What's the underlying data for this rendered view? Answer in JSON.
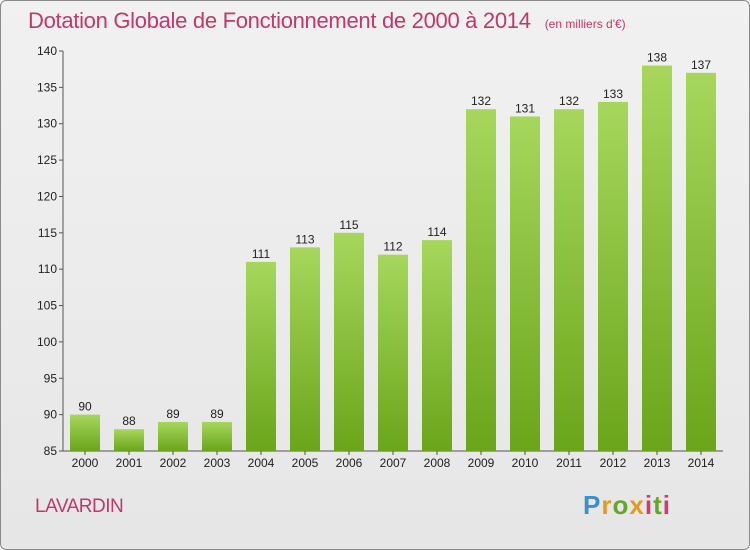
{
  "header": {
    "title": "Dotation Globale de Fonctionnement de 2000 à 2014",
    "subtitle": "(en milliers d'€)"
  },
  "footer": {
    "commune": "LAVARDIN",
    "logo_text": "Proxiti"
  },
  "colors": {
    "bar_top": "#a6d75c",
    "bar_bottom": "#6aa51b",
    "title": "#c0396b",
    "axis": "#555555"
  },
  "chart_data": {
    "type": "bar",
    "title": "Dotation Globale de Fonctionnement de 2000 à 2014",
    "subtitle": "(en milliers d'€)",
    "xlabel": "",
    "ylabel": "",
    "categories": [
      "2000",
      "2001",
      "2002",
      "2003",
      "2004",
      "2005",
      "2006",
      "2007",
      "2008",
      "2009",
      "2010",
      "2011",
      "2012",
      "2013",
      "2014"
    ],
    "values": [
      90,
      88,
      89,
      89,
      111,
      113,
      115,
      112,
      114,
      132,
      131,
      132,
      133,
      138,
      137
    ],
    "ylim": [
      85,
      140
    ],
    "yticks": [
      85,
      90,
      95,
      100,
      105,
      110,
      115,
      120,
      125,
      130,
      135,
      140
    ],
    "grid": false,
    "legend": "none"
  }
}
